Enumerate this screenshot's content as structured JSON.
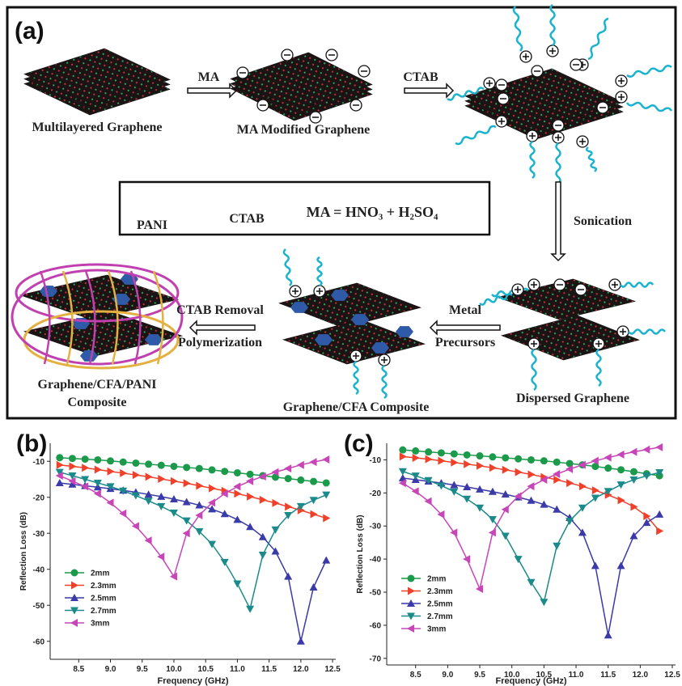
{
  "diagram": {
    "panel_label": "(a)",
    "multilayered": "Multilayered Graphene",
    "arrow_ma": "MA",
    "ma_modified": "MA Modified Graphene",
    "arrow_ctab": "CTAB",
    "legend": {
      "pani": "PANI",
      "ctab": "CTAB",
      "formula": "MA = HNO₃ + H₂SO₄"
    },
    "sonication": "Sonication",
    "dispersed": "Dispersed Graphene",
    "metal_precursors": [
      "Metal",
      "Precursors"
    ],
    "graphene_cfa": "Graphene/CFA Composite",
    "ctab_removal": [
      "CTAB Removal",
      "Polymerization"
    ],
    "final": [
      "Graphene/CFA/PANI",
      "Composite"
    ]
  },
  "chart_data": [
    {
      "type": "line",
      "panel_label": "(b)",
      "xlabel": "Frequency (GHz)",
      "ylabel": "Reflection Loss (dB)",
      "xlim": [
        8.05,
        12.55
      ],
      "ylim": [
        -65,
        -5
      ],
      "xticks": [
        8.5,
        {
          "value": 9,
          "label": "9.0"
        },
        9.5,
        {
          "value": 10,
          "label": "10.0"
        },
        10.5,
        {
          "value": 11,
          "label": "11.0"
        },
        11.5,
        {
          "value": 12,
          "label": "12.0"
        },
        12.5
      ],
      "yticks": [
        -10,
        -20,
        -30,
        -40,
        -50,
        -60
      ],
      "grid": false,
      "legend": "lower left",
      "x": [
        8.2,
        8.4,
        8.6,
        8.8,
        9.0,
        9.2,
        9.4,
        9.6,
        9.8,
        10.0,
        10.2,
        10.4,
        10.6,
        10.8,
        11.0,
        11.2,
        11.4,
        11.6,
        11.8,
        12.0,
        12.2,
        12.4
      ],
      "series": [
        {
          "name": "2mm",
          "color": "#1a9a4a",
          "marker": "circle",
          "values": [
            -9.0,
            -9.2,
            -9.4,
            -9.6,
            -9.9,
            -10.2,
            -10.5,
            -10.8,
            -11.1,
            -11.4,
            -11.7,
            -12.0,
            -12.4,
            -12.8,
            -13.2,
            -13.6,
            -14.0,
            -14.4,
            -14.8,
            -15.2,
            -15.6,
            -16.0
          ]
        },
        {
          "name": "2.3mm",
          "color": "#f0402a",
          "marker": "triangle-right",
          "values": [
            -11.0,
            -11.4,
            -11.8,
            -12.3,
            -12.8,
            -13.3,
            -13.8,
            -14.3,
            -14.9,
            -15.5,
            -16.1,
            -16.8,
            -17.5,
            -18.2,
            -19.0,
            -19.8,
            -20.7,
            -21.6,
            -22.6,
            -23.6,
            -24.7,
            -25.8
          ]
        },
        {
          "name": "2.5mm",
          "color": "#3a3aa8",
          "marker": "triangle-up",
          "values": [
            -16.0,
            -16.4,
            -16.8,
            -17.2,
            -17.6,
            -18.1,
            -18.6,
            -19.2,
            -19.8,
            -20.5,
            -21.3,
            -22.2,
            -23.3,
            -24.6,
            -26.2,
            -28.2,
            -31.0,
            -35.0,
            -42.0,
            -60.0,
            -45.0,
            -37.5
          ]
        },
        {
          "name": "2.7mm",
          "color": "#1a8a8a",
          "marker": "triangle-down",
          "values": [
            -13.0,
            -14.0,
            -15.0,
            -16.0,
            -17.0,
            -18.2,
            -19.5,
            -21.0,
            -22.5,
            -24.3,
            -26.5,
            -29.5,
            -33.0,
            -38.0,
            -44.0,
            -51.0,
            -36.0,
            -29.0,
            -25.0,
            -22.5,
            -20.8,
            -19.3
          ]
        },
        {
          "name": "3mm",
          "color": "#c845b8",
          "marker": "triangle-left",
          "values": [
            -14.0,
            -15.5,
            -17.0,
            -19.0,
            -21.5,
            -24.5,
            -28.0,
            -32.0,
            -36.5,
            -42.0,
            -30.0,
            -25.0,
            -21.5,
            -19.0,
            -17.0,
            -15.5,
            -14.2,
            -13.0,
            -12.0,
            -11.0,
            -10.2,
            -9.5
          ]
        }
      ]
    },
    {
      "type": "line",
      "panel_label": "(c)",
      "xlabel": "Frequency (GHz)",
      "ylabel": "Reflection Loss (dB)",
      "xlim": [
        8.05,
        12.55
      ],
      "ylim": [
        -72,
        -5
      ],
      "xticks": [
        8.5,
        {
          "value": 9,
          "label": "9.0"
        },
        9.5,
        {
          "value": 10,
          "label": "10.0"
        },
        10.5,
        {
          "value": 11,
          "label": "11.0"
        },
        11.5,
        {
          "value": 12,
          "label": "12.0"
        },
        12.5
      ],
      "yticks": [
        -10,
        -20,
        -30,
        -40,
        -50,
        -60,
        -70
      ],
      "grid": false,
      "legend": "lower left",
      "x": [
        8.3,
        8.5,
        8.7,
        8.9,
        9.1,
        9.3,
        9.5,
        9.7,
        9.9,
        10.1,
        10.3,
        10.5,
        10.7,
        10.9,
        11.1,
        11.3,
        11.5,
        11.7,
        11.9,
        12.1,
        12.3
      ],
      "series": [
        {
          "name": "2mm",
          "color": "#1a9a4a",
          "marker": "circle",
          "values": [
            -7.0,
            -7.3,
            -7.6,
            -7.9,
            -8.2,
            -8.5,
            -8.8,
            -9.1,
            -9.4,
            -9.7,
            -10.0,
            -10.3,
            -10.7,
            -11.1,
            -11.5,
            -12.0,
            -12.5,
            -13.0,
            -13.6,
            -14.2,
            -14.8
          ]
        },
        {
          "name": "2.3mm",
          "color": "#f0402a",
          "marker": "triangle-right",
          "values": [
            -9.0,
            -9.4,
            -9.8,
            -10.3,
            -10.8,
            -11.3,
            -11.8,
            -12.4,
            -13.0,
            -13.7,
            -14.4,
            -15.2,
            -16.0,
            -17.0,
            -18.0,
            -19.2,
            -20.6,
            -22.2,
            -24.2,
            -27.0,
            -31.5
          ]
        },
        {
          "name": "2.5mm",
          "color": "#3a3aa8",
          "marker": "triangle-up",
          "values": [
            -15.5,
            -16.0,
            -16.5,
            -17.0,
            -17.6,
            -18.2,
            -18.9,
            -19.6,
            -20.4,
            -21.3,
            -22.3,
            -23.5,
            -25.0,
            -27.5,
            -32.0,
            -42.0,
            -63.0,
            -42.0,
            -33.0,
            -29.0,
            -26.5
          ]
        },
        {
          "name": "2.7mm",
          "color": "#1a8a8a",
          "marker": "triangle-down",
          "values": [
            -13.5,
            -14.8,
            -16.2,
            -17.8,
            -19.6,
            -21.8,
            -24.5,
            -28.0,
            -33.0,
            -40.0,
            -47.0,
            -53.0,
            -36.0,
            -28.5,
            -24.5,
            -21.5,
            -19.5,
            -17.5,
            -16.0,
            -14.8,
            -13.8
          ]
        },
        {
          "name": "3mm",
          "color": "#c845b8",
          "marker": "triangle-left",
          "values": [
            -17.0,
            -19.5,
            -22.5,
            -26.5,
            -32.0,
            -40.0,
            -49.0,
            -32.0,
            -25.0,
            -21.0,
            -18.0,
            -16.0,
            -14.3,
            -12.8,
            -11.5,
            -10.3,
            -9.3,
            -8.4,
            -7.6,
            -6.9,
            -6.2
          ]
        }
      ]
    }
  ]
}
